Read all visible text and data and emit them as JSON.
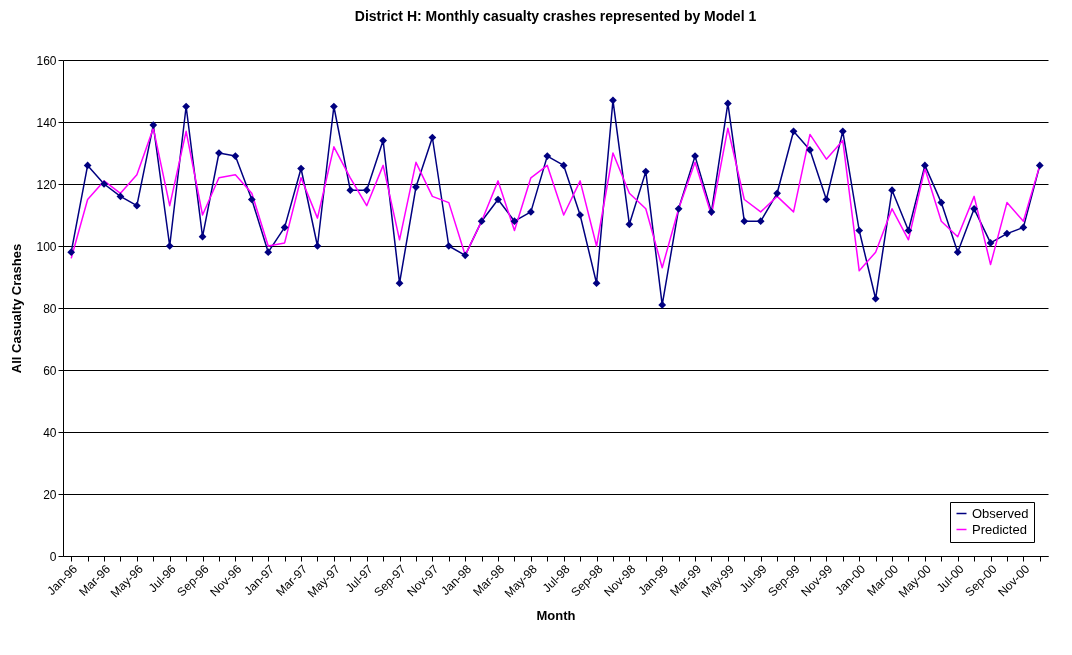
{
  "chart_data": {
    "type": "line",
    "title": "District H: Monthly casualty crashes represented by Model 1",
    "xlabel": "Month",
    "ylabel": "All Casualty Crashes",
    "categories": [
      "Jan-96",
      null,
      "Mar-96",
      null,
      "May-96",
      null,
      "Jul-96",
      null,
      "Sep-96",
      null,
      "Nov-96",
      null,
      "Jan-97",
      null,
      "Mar-97",
      null,
      "May-97",
      null,
      "Jul-97",
      null,
      "Sep-97",
      null,
      "Nov-97",
      null,
      "Jan-98",
      null,
      "Mar-98",
      null,
      "May-98",
      null,
      "Jul-98",
      null,
      "Sep-98",
      null,
      "Nov-98",
      null,
      "Jan-99",
      null,
      "Mar-99",
      null,
      "May-99",
      null,
      "Jul-99",
      null,
      "Sep-99",
      null,
      "Nov-99",
      null,
      "Jan-00",
      null,
      "Mar-00",
      null,
      "May-00",
      null,
      "Jul-00",
      null,
      "Sep-00",
      null,
      "Nov-00",
      null
    ],
    "series": [
      {
        "name": "Observed",
        "color": "#000080",
        "marker": "diamond",
        "values": [
          98,
          126,
          120,
          116,
          113,
          139,
          100,
          145,
          103,
          130,
          129,
          115,
          98,
          106,
          125,
          100,
          145,
          118,
          118,
          134,
          88,
          119,
          135,
          100,
          97,
          108,
          115,
          108,
          111,
          129,
          126,
          110,
          88,
          147,
          107,
          124,
          81,
          112,
          129,
          111,
          146,
          108,
          108,
          117,
          137,
          131,
          115,
          137,
          105,
          83,
          118,
          105,
          126,
          114,
          98,
          112,
          101,
          104,
          106,
          126
        ]
      },
      {
        "name": "Predicted",
        "color": "#ff00ff",
        "marker": "none",
        "values": [
          96,
          115,
          121,
          117,
          123,
          138,
          113,
          137,
          110,
          122,
          123,
          117,
          100,
          101,
          122,
          109,
          132,
          122,
          113,
          126,
          102,
          127,
          116,
          114,
          97,
          108,
          121,
          105,
          122,
          126,
          110,
          121,
          100,
          130,
          117,
          112,
          93,
          112,
          127,
          110,
          138,
          115,
          111,
          116,
          111,
          136,
          128,
          134,
          92,
          98,
          112,
          102,
          125,
          108,
          103,
          116,
          94,
          114,
          108,
          126
        ]
      }
    ],
    "ylim": [
      0,
      160
    ],
    "yticks": [
      0,
      20,
      40,
      60,
      80,
      100,
      120,
      140,
      160
    ],
    "grid": "y",
    "legend": "bottom right"
  }
}
